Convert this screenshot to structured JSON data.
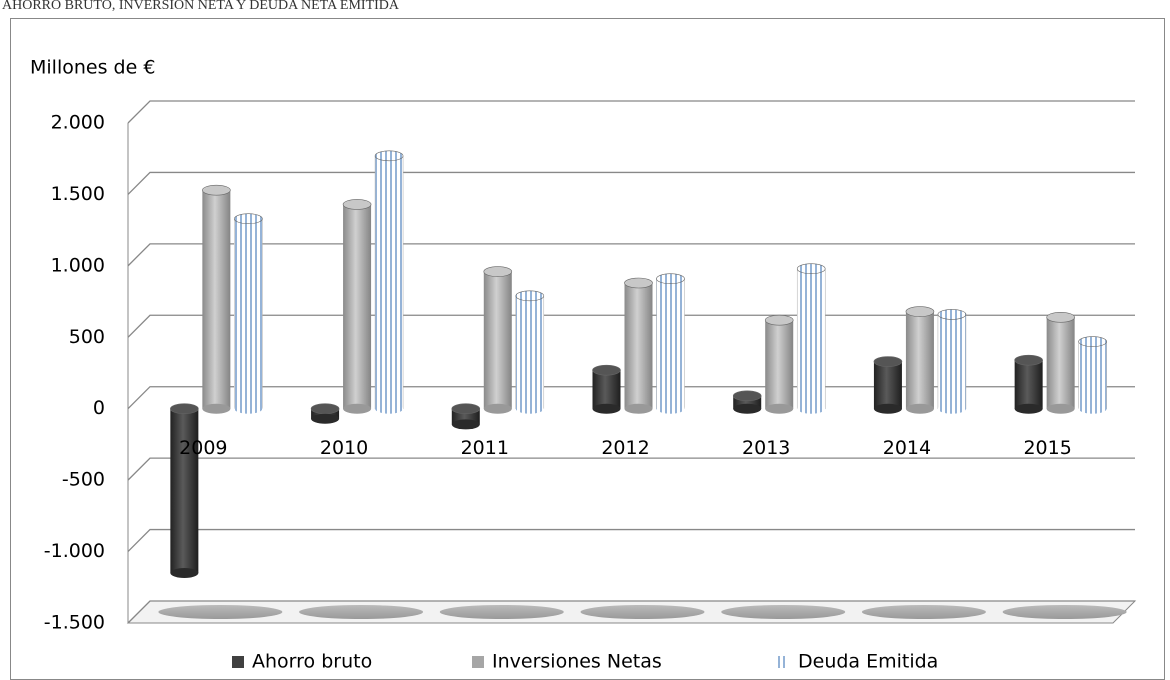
{
  "chart_data": {
    "type": "bar",
    "title": "AHORRO BRUTO, INVERSIÓN NETA Y DEUDA NETA EMITIDA",
    "y_label": "Millones de €",
    "categories": [
      "2009",
      "2010",
      "2011",
      "2012",
      "2013",
      "2014",
      "2015"
    ],
    "series": [
      {
        "name": "Ahorro bruto",
        "color": "#404040",
        "values": [
          -1150,
          -70,
          -110,
          270,
          90,
          330,
          340
        ]
      },
      {
        "name": "Inversiones Netas",
        "color": "#a6a6a6",
        "values": [
          1530,
          1430,
          960,
          880,
          620,
          680,
          640
        ]
      },
      {
        "name": "Deuda Emitida",
        "color": "#95b3d7",
        "values": [
          1330,
          1770,
          790,
          910,
          980,
          660,
          470
        ]
      }
    ],
    "ylim": [
      -1500,
      2000
    ],
    "yticks": [
      {
        "value": -1500,
        "label": "-1.500"
      },
      {
        "value": -1000,
        "label": "-1.000"
      },
      -500,
      0,
      500,
      {
        "value": 1000,
        "label": "1.000"
      },
      {
        "value": 1500,
        "label": "1.500"
      },
      {
        "value": 2000,
        "label": "2.000"
      }
    ],
    "grid": true
  }
}
